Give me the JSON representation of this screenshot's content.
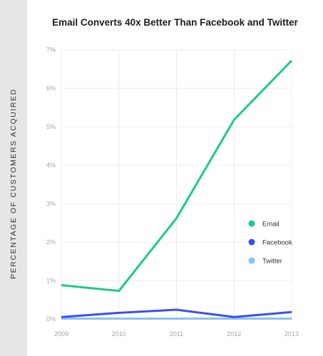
{
  "chart_data": {
    "type": "line",
    "title": "Email Converts 40x Better Than Facebook and Twitter",
    "ylabel": "PERCENTAGE OF CUSTOMERS ACQUIRED",
    "xlabel": "",
    "x": [
      "2009",
      "2010",
      "2011",
      "2012",
      "2013"
    ],
    "ylim": [
      0,
      7
    ],
    "yticks": [
      "0%",
      "1%",
      "2%",
      "3%",
      "4%",
      "5%",
      "6%",
      "7%"
    ],
    "grid": true,
    "legend_position": "right",
    "series": [
      {
        "name": "Email",
        "color": "#1ec98f",
        "values": [
          0.88,
          0.73,
          2.62,
          5.18,
          6.72
        ]
      },
      {
        "name": "Facebook",
        "color": "#3d4ef2",
        "values": [
          0.05,
          0.16,
          0.24,
          0.05,
          0.18
        ]
      },
      {
        "name": "Twitter",
        "color": "#86c3f7",
        "values": [
          0.01,
          0.01,
          0.01,
          0.01,
          0.01
        ]
      }
    ]
  }
}
